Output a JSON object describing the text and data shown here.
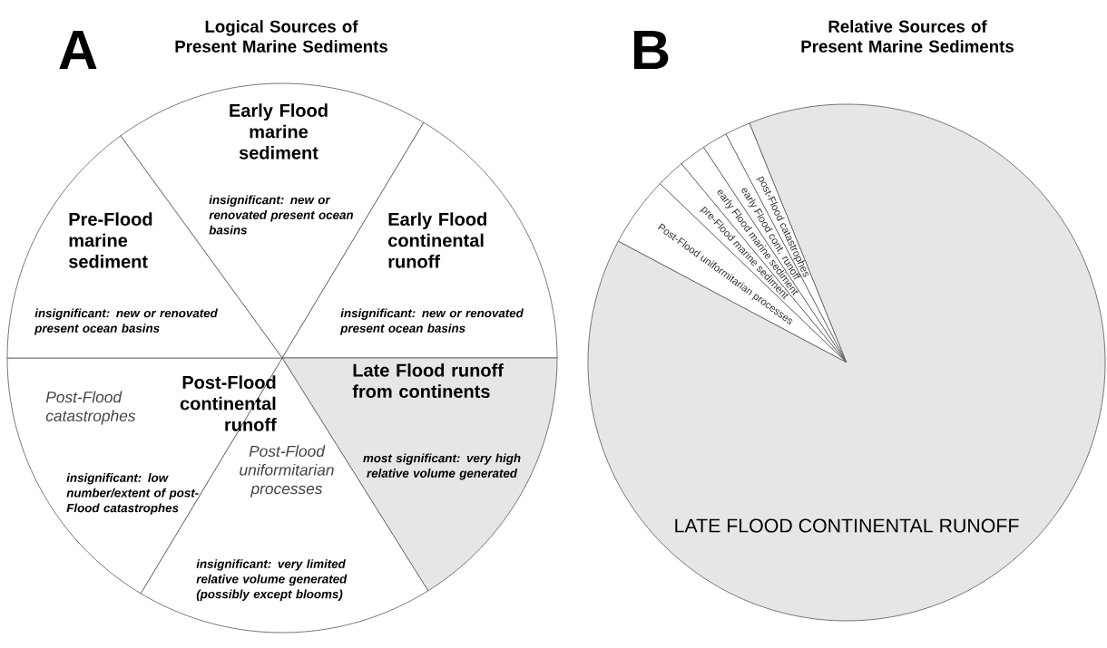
{
  "chart_data": [
    {
      "type": "pie",
      "title": "Logical Sources of Present Marine Sediments",
      "categories": [
        "Early Flood marine sediment",
        "Early Flood continental runoff",
        "Late Flood runoff from continents",
        "Post-Flood uniformitarian processes",
        "Post-Flood catastrophes",
        "Pre-Flood marine sediment"
      ],
      "values": [
        18.6,
        16.4,
        16.1,
        17.5,
        16.4,
        15.0
      ],
      "colors": [
        "#ffffff",
        "#ffffff",
        "#e6e6e6",
        "#ffffff",
        "#ffffff",
        "#ffffff"
      ],
      "annotations": [
        "A",
        "Post-Flood continental runoff",
        "insignificant: new or renovated present ocean basins",
        "insignificant: new or renovated present ocean basins",
        "insignificant: new or renovated present ocean basins",
        "most significant: very high relative volume generated",
        "insignificant: low number/extent of post-Flood catastrophes",
        "insignificant: very limited relative volume generated (possibly except blooms)"
      ]
    },
    {
      "type": "pie",
      "title": "Relative Sources of Present Marine Sediments",
      "categories": [
        "Post-Flood uniformitarian processes",
        "pre-Flood marine sediment",
        "early Flood marine sediment",
        "early Flood cont. runoff",
        "post-Flood catastrophes",
        "LATE FLOOD CONTINENTAL RUNOFF"
      ],
      "values": [
        4.4,
        1.8,
        1.7,
        1.6,
        1.6,
        88.9
      ],
      "colors": [
        "#ffffff",
        "#ffffff",
        "#ffffff",
        "#ffffff",
        "#ffffff",
        "#e6e6e6"
      ],
      "annotations": [
        "B"
      ]
    }
  ]
}
